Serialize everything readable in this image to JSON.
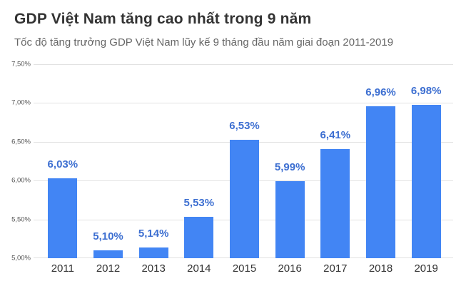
{
  "chart_data": {
    "type": "bar",
    "title": "GDP Việt Nam tăng cao nhất trong 9 năm",
    "subtitle": "Tốc độ tăng trưởng GDP Việt Nam lũy kế 9 tháng đầu năm giai đoạn 2011-2019",
    "categories": [
      "2011",
      "2012",
      "2013",
      "2014",
      "2015",
      "2016",
      "2017",
      "2018",
      "2019"
    ],
    "values": [
      6.03,
      5.1,
      5.14,
      5.53,
      6.53,
      5.99,
      6.41,
      6.96,
      6.98
    ],
    "value_labels": [
      "6,03%",
      "5,10%",
      "5,14%",
      "5,53%",
      "6,53%",
      "5,99%",
      "6,41%",
      "6,96%",
      "6,98%"
    ],
    "xlabel": "",
    "ylabel": "",
    "ylim": [
      5.0,
      7.5
    ],
    "y_tick_values": [
      7.5,
      7.0,
      6.5,
      6.0,
      5.5,
      5.0
    ],
    "y_tick_labels": [
      "7,50%",
      "7,00%",
      "6,50%",
      "6,00%",
      "5,50%",
      "5,00%"
    ],
    "grid": true,
    "legend": "none",
    "colors": {
      "bar": "#4285f4",
      "value_label": "#3d6fd1",
      "title": "#333333",
      "subtitle": "#666666",
      "y_tick_label": "#555555",
      "x_label": "#333333",
      "gridline": "#e2e2e2",
      "background": "#ffffff"
    }
  }
}
